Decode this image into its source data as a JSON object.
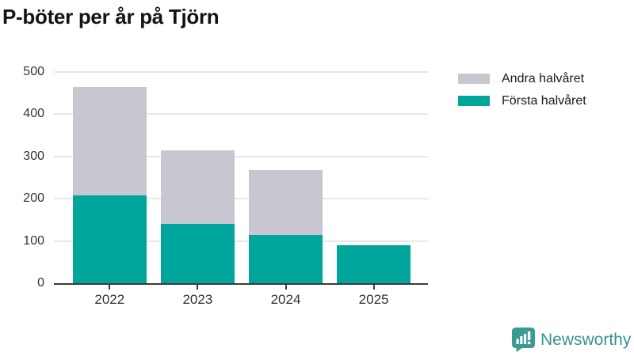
{
  "title": "P-böter per år på Tjörn",
  "chart_data": {
    "type": "bar",
    "stacked": true,
    "title": "P-böter per år på Tjörn",
    "categories": [
      "2022",
      "2023",
      "2024",
      "2025"
    ],
    "series": [
      {
        "name": "Första halvåret",
        "color": "#00a69c",
        "values": [
          207,
          140,
          115,
          89
        ]
      },
      {
        "name": "Andra halvåret",
        "color": "#c8c6d0",
        "values": [
          258,
          175,
          153,
          0
        ]
      }
    ],
    "stack_order": "bottom-to-top",
    "totals": [
      465,
      315,
      268,
      89
    ],
    "xlabel": "",
    "ylabel": "",
    "ylim": [
      0,
      500
    ],
    "yticks": [
      0,
      100,
      200,
      300,
      400,
      500
    ],
    "grid": true,
    "legend_position": "top-right"
  },
  "legend": {
    "items": [
      {
        "label": "Andra halvåret",
        "color": "#c8c6d0"
      },
      {
        "label": "Första halvåret",
        "color": "#00a69c"
      }
    ]
  },
  "branding": {
    "logo_text": "Newsworthy",
    "logo_icon": "bar-chart-speech-bubble-icon",
    "color": "#3a918f",
    "icon_color": "#3a9b93"
  },
  "colors": {
    "first_half": "#00a69c",
    "second_half": "#c8c6d0",
    "gridline": "#e7e7e7",
    "axis": "#3a3a3a",
    "text": "#333333"
  }
}
